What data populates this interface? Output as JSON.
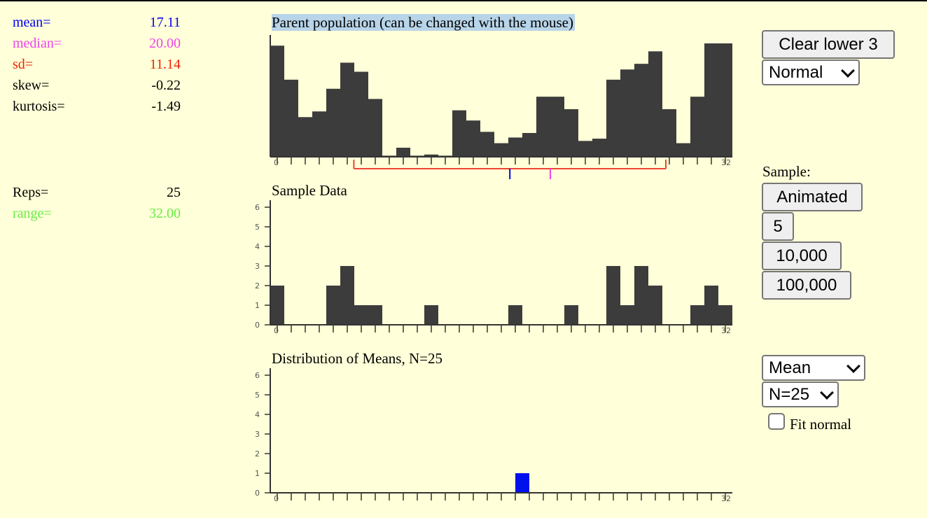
{
  "stats": [
    {
      "label": "mean=",
      "value": "17.11",
      "color": "#0000ee"
    },
    {
      "label": "median=",
      "value": "20.00",
      "color": "#ee44ee"
    },
    {
      "label": "sd=",
      "value": "11.14",
      "color": "#ee2200"
    },
    {
      "label": "skew=",
      "value": "-0.22",
      "color": "#000000"
    },
    {
      "label": "kurtosis=",
      "value": "-1.49",
      "color": "#000000"
    }
  ],
  "reps": {
    "label": "Reps=",
    "value": "25",
    "color": "#000000"
  },
  "range": {
    "label": "range=",
    "value": "32.00",
    "color": "#66ee44"
  },
  "parent": {
    "title": "Parent population (can be changed with the mouse)",
    "x_first": "0",
    "x_last": "32",
    "bar_color": "#3c3c3c",
    "values": [
      0.98,
      0.68,
      0.35,
      0.4,
      0.6,
      0.83,
      0.75,
      0.51,
      0.01,
      0.08,
      0.01,
      0.02,
      0.01,
      0.41,
      0.32,
      0.22,
      0.12,
      0.17,
      0.21,
      0.53,
      0.53,
      0.42,
      0.14,
      0.16,
      0.68,
      0.77,
      0.82,
      0.93,
      0.42,
      0.12,
      0.53,
      1.0,
      1.0
    ],
    "mean": 17.11,
    "median": 20.0,
    "sd_low": 5.97,
    "sd_high": 28.25,
    "mean_color": "#0000ee",
    "median_color": "#ee44ee",
    "sd_color": "#ee4433"
  },
  "sample": {
    "title": "Sample Data",
    "yticks": [
      "0",
      "1",
      "2",
      "3",
      "4",
      "5",
      "6"
    ],
    "x_first": "0",
    "x_last": "32",
    "bar_color": "#3c3c3c",
    "counts": [
      2,
      0,
      0,
      0,
      2,
      3,
      1,
      1,
      0,
      0,
      0,
      1,
      0,
      0,
      0,
      0,
      0,
      1,
      0,
      0,
      0,
      1,
      0,
      0,
      3,
      1,
      3,
      2,
      0,
      0,
      1,
      2,
      1
    ]
  },
  "means": {
    "title": "Distribution of Means, N=25",
    "yticks": [
      "0",
      "1",
      "2",
      "3",
      "4",
      "5",
      "6"
    ],
    "x_first": "0",
    "x_last": "32",
    "bar_color": "#0011ee",
    "bars": [
      {
        "x": 17.9,
        "count": 1
      }
    ]
  },
  "controls": {
    "clear_lower": "Clear lower 3",
    "population_select": "Normal",
    "sample_label": "Sample:",
    "animated": "Animated",
    "btn_5": "5",
    "btn_10000": "10,000",
    "btn_100000": "100,000",
    "statistic_select": "Mean",
    "n_select": "N=25",
    "fit_normal_label": "Fit normal",
    "fit_normal_checked": false
  }
}
